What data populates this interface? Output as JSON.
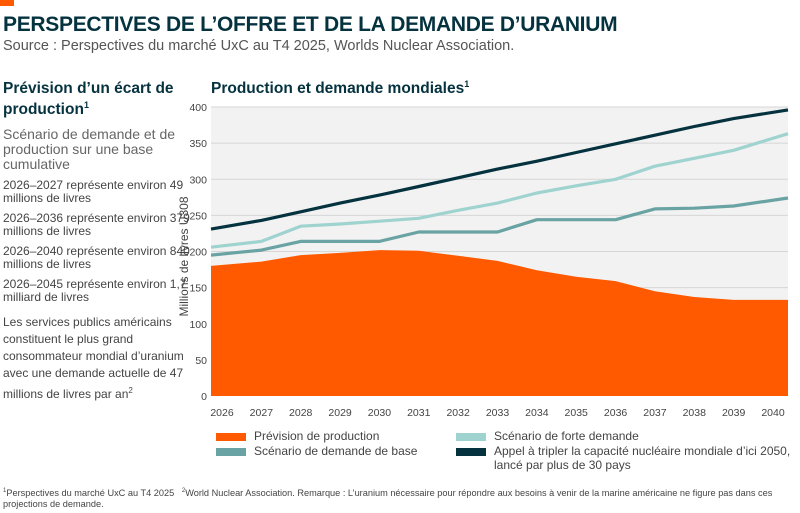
{
  "header": {
    "title": "PERSPECTIVES DE L’OFFRE ET DE LA DEMANDE D’URANIUM",
    "source": "Source : Perspectives du marché UxC au T4 2025, Worlds Nuclear Association."
  },
  "left_panel": {
    "heading": "Prévision d’un écart de production",
    "heading_sup": "1",
    "subheading": "Scénario de demande et de production sur une base cumulative",
    "stats": [
      "2026–2027 représente environ 49 millions de livres",
      "2026–2036 représente environ 379 millions de livres",
      "2026–2040 représente environ 840 millions de livres",
      "2026–2045 représente environ 1,7 milliard de livres"
    ],
    "note": "Les services publics américains constituent le plus grand consommateur mondial d’uranium avec une demande actuelle de 47 millions de livres par an",
    "note_sup": "2"
  },
  "footnotes": {
    "f1_sup": "1",
    "f1": "Perspectives du marché UxC au T4 2025",
    "f2_sup": "2",
    "f2": "World Nuclear Association.  Remarque : L’uranium nécessaire pour répondre aux besoins à venir de la marine américaine ne figure pas dans ces projections de demande."
  },
  "colors": {
    "accent": "#ff5a00",
    "production": "#ff5a00",
    "base": "#6aa3a3",
    "high": "#9fd3cf",
    "triple": "#05323f",
    "plot_bg": "#f2f2f2",
    "title": "#05323f"
  },
  "chart_data": {
    "type": "area",
    "title": "Production et demande mondiales",
    "title_sup": "1",
    "xlabel": "",
    "ylabel": "Millions de livres U308",
    "ylim": [
      0,
      400
    ],
    "yticks": [
      0,
      50,
      100,
      150,
      200,
      250,
      300,
      350,
      400
    ],
    "grid": true,
    "legend_position": "bottom",
    "x": [
      2026,
      2027,
      2028,
      2029,
      2030,
      2031,
      2032,
      2033,
      2034,
      2035,
      2036,
      2037,
      2038,
      2039,
      2040
    ],
    "series": [
      {
        "name": "Prévision de production",
        "kind": "area",
        "color_key": "production",
        "values": [
          180,
          186,
          195,
          198,
          202,
          201,
          194,
          187,
          174,
          165,
          159,
          145,
          137,
          133,
          133
        ]
      },
      {
        "name": "Scénario de demande de base",
        "kind": "line",
        "color_key": "base",
        "values": [
          195,
          202,
          214,
          214,
          214,
          227,
          227,
          227,
          244,
          244,
          244,
          259,
          260,
          263,
          274
        ]
      },
      {
        "name": "Scénario de forte demande",
        "kind": "line",
        "color_key": "high",
        "values": [
          206,
          214,
          235,
          238,
          242,
          246,
          257,
          267,
          281,
          291,
          300,
          318,
          329,
          340,
          363
        ]
      },
      {
        "name": "Appel à tripler la capacité nucléaire mondiale d’ici 2050, lancé par plus de 30 pays",
        "kind": "line",
        "color_key": "triple",
        "values": [
          231,
          243,
          255,
          267,
          278,
          290,
          302,
          314,
          325,
          337,
          349,
          361,
          373,
          384,
          396
        ]
      }
    ]
  }
}
